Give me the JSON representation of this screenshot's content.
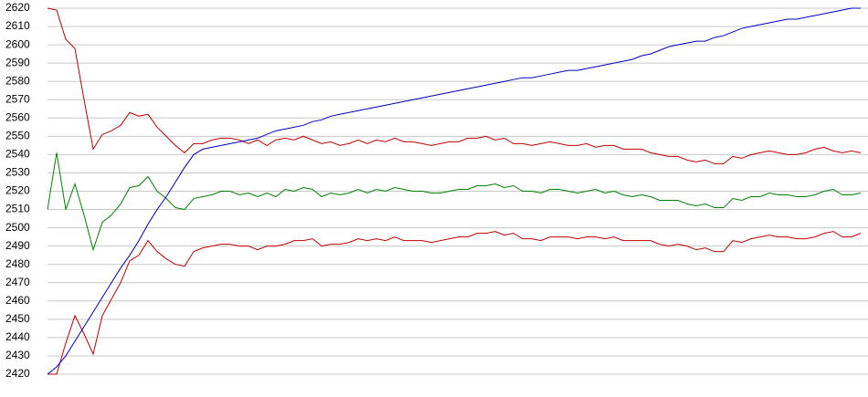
{
  "chart_data": {
    "type": "line",
    "ylim": [
      2420,
      2620
    ],
    "yticks": [
      2420,
      2430,
      2440,
      2450,
      2460,
      2470,
      2480,
      2490,
      2500,
      2510,
      2520,
      2530,
      2540,
      2550,
      2560,
      2570,
      2580,
      2590,
      2600,
      2610,
      2620
    ],
    "grid": true,
    "series": [
      {
        "color": "#c00000",
        "values": [
          2620,
          2619,
          2603,
          2598,
          2570,
          2543,
          2551,
          2553,
          2556,
          2563,
          2561,
          2562,
          2555,
          2550,
          2545,
          2541,
          2546,
          2546,
          2548,
          2549,
          2549,
          2548,
          2546,
          2548,
          2545,
          2548,
          2549,
          2548,
          2550,
          2548,
          2546,
          2547,
          2545,
          2546,
          2548,
          2546,
          2548,
          2547,
          2549,
          2547,
          2547,
          2546,
          2545,
          2546,
          2547,
          2547,
          2549,
          2549,
          2550,
          2548,
          2549,
          2546,
          2546,
          2545,
          2546,
          2547,
          2546,
          2545,
          2545,
          2546,
          2544,
          2545,
          2545,
          2543,
          2543,
          2543,
          2541,
          2540,
          2539,
          2539,
          2537,
          2536,
          2537,
          2535,
          2535,
          2539,
          2538,
          2540,
          2541,
          2542,
          2541,
          2540,
          2540,
          2541,
          2543,
          2544,
          2542,
          2541,
          2542,
          2541
        ]
      },
      {
        "color": "#008000",
        "values": [
          2510,
          2541,
          2510,
          2524,
          2507,
          2488,
          2503,
          2507,
          2513,
          2522,
          2523,
          2528,
          2520,
          2516,
          2511,
          2510,
          2516,
          2517,
          2518,
          2520,
          2520,
          2518,
          2519,
          2517,
          2519,
          2517,
          2521,
          2520,
          2522,
          2521,
          2517,
          2519,
          2518,
          2519,
          2521,
          2519,
          2521,
          2520,
          2522,
          2521,
          2520,
          2520,
          2519,
          2519,
          2520,
          2521,
          2521,
          2523,
          2523,
          2524,
          2522,
          2523,
          2520,
          2520,
          2519,
          2521,
          2521,
          2520,
          2519,
          2520,
          2521,
          2519,
          2520,
          2518,
          2517,
          2518,
          2517,
          2515,
          2515,
          2515,
          2513,
          2512,
          2513,
          2511,
          2511,
          2516,
          2515,
          2517,
          2517,
          2519,
          2518,
          2518,
          2517,
          2517,
          2518,
          2520,
          2521,
          2518,
          2518,
          2519
        ]
      },
      {
        "color": "#c00000",
        "values": [
          2420,
          2420,
          2437,
          2452,
          2442,
          2431,
          2452,
          2461,
          2470,
          2482,
          2485,
          2493,
          2487,
          2483,
          2480,
          2479,
          2487,
          2489,
          2490,
          2491,
          2491,
          2490,
          2490,
          2488,
          2490,
          2490,
          2491,
          2493,
          2493,
          2494,
          2490,
          2491,
          2491,
          2492,
          2494,
          2493,
          2494,
          2493,
          2495,
          2493,
          2493,
          2493,
          2492,
          2493,
          2494,
          2495,
          2495,
          2497,
          2497,
          2498,
          2496,
          2497,
          2494,
          2494,
          2493,
          2495,
          2495,
          2495,
          2494,
          2495,
          2495,
          2494,
          2495,
          2493,
          2493,
          2493,
          2493,
          2491,
          2490,
          2491,
          2490,
          2488,
          2489,
          2487,
          2487,
          2493,
          2492,
          2494,
          2495,
          2496,
          2495,
          2495,
          2494,
          2494,
          2495,
          2497,
          2498,
          2495,
          2495,
          2497
        ]
      },
      {
        "color": "#0000c0",
        "values": [
          2420,
          2424,
          2430,
          2438,
          2446,
          2454,
          2462,
          2470,
          2478,
          2485,
          2493,
          2502,
          2510,
          2517,
          2525,
          2533,
          2540,
          2543,
          2544,
          2545,
          2546,
          2547,
          2548,
          2549,
          2551,
          2553,
          2554,
          2555,
          2556,
          2558,
          2559,
          2561,
          2562,
          2563,
          2564,
          2565,
          2566,
          2567,
          2568,
          2569,
          2570,
          2571,
          2572,
          2573,
          2574,
          2575,
          2576,
          2577,
          2578,
          2579,
          2580,
          2581,
          2582,
          2582,
          2583,
          2584,
          2585,
          2586,
          2586,
          2587,
          2588,
          2589,
          2590,
          2591,
          2592,
          2594,
          2595,
          2597,
          2599,
          2600,
          2601,
          2602,
          2602,
          2604,
          2605,
          2607,
          2609,
          2610,
          2611,
          2612,
          2613,
          2614,
          2614,
          2615,
          2616,
          2617,
          2618,
          2619,
          2620,
          2620
        ]
      }
    ]
  }
}
